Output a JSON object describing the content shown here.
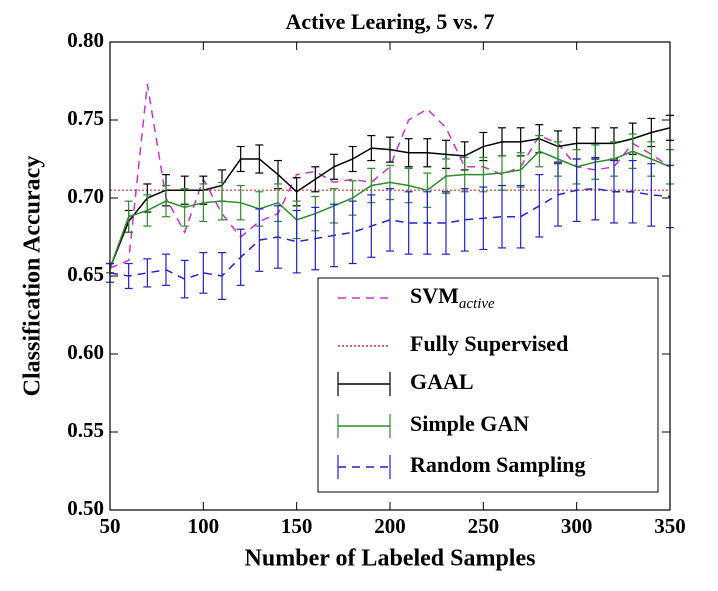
{
  "chart_data": {
    "type": "line",
    "title": "Active Learing, 5 vs. 7",
    "xlabel": "Number of Labeled Samples",
    "ylabel": "Classification Accuracy",
    "xlim": [
      50,
      350
    ],
    "ylim": [
      0.5,
      0.8
    ],
    "xticks": [
      50,
      100,
      150,
      200,
      250,
      300,
      350
    ],
    "yticks": [
      {
        "value": 0.5,
        "label": "0.50"
      },
      {
        "value": 0.55,
        "label": "0.55"
      },
      {
        "value": 0.6,
        "label": "0.60"
      },
      {
        "value": 0.65,
        "label": "0.65"
      },
      {
        "value": 0.7,
        "label": "0.70"
      },
      {
        "value": 0.75,
        "label": "0.75"
      },
      {
        "value": 0.8,
        "label": "0.80"
      }
    ],
    "legend": "lower right",
    "x": [
      50,
      60,
      70,
      80,
      90,
      100,
      110,
      120,
      130,
      140,
      150,
      160,
      170,
      180,
      190,
      200,
      210,
      220,
      230,
      240,
      250,
      260,
      270,
      280,
      290,
      300,
      310,
      320,
      330,
      340,
      350
    ],
    "series": [
      {
        "name": "SVM",
        "name_subscript": "active",
        "color": "#cc33cc",
        "linestyle": "dashed",
        "values": [
          0.655,
          0.66,
          0.773,
          0.7,
          0.678,
          0.712,
          0.69,
          0.675,
          0.685,
          0.69,
          0.715,
          0.717,
          0.71,
          0.712,
          0.71,
          0.72,
          0.75,
          0.757,
          0.745,
          0.72,
          0.72,
          0.715,
          0.72,
          0.74,
          0.735,
          0.72,
          0.718,
          0.72,
          0.735,
          0.728,
          0.72
        ]
      },
      {
        "name": "Fully Supervised",
        "color": "#cc3333",
        "linestyle": "dotted",
        "y": 0.705
      },
      {
        "name": "GAAL",
        "color": "#000000",
        "linestyle": "solid",
        "values": [
          0.655,
          0.685,
          0.7,
          0.705,
          0.705,
          0.705,
          0.708,
          0.725,
          0.725,
          0.715,
          0.704,
          0.712,
          0.72,
          0.725,
          0.732,
          0.731,
          0.729,
          0.729,
          0.728,
          0.727,
          0.733,
          0.736,
          0.736,
          0.738,
          0.733,
          0.735,
          0.735,
          0.735,
          0.738,
          0.742,
          0.745
        ],
        "errors": [
          0.003,
          0.007,
          0.009,
          0.01,
          0.009,
          0.009,
          0.01,
          0.008,
          0.009,
          0.009,
          0.009,
          0.008,
          0.008,
          0.008,
          0.008,
          0.008,
          0.009,
          0.009,
          0.009,
          0.009,
          0.009,
          0.009,
          0.009,
          0.009,
          0.01,
          0.01,
          0.01,
          0.01,
          0.01,
          0.009,
          0.008
        ]
      },
      {
        "name": "Simple GAN",
        "color": "#2e8b2e",
        "linestyle": "solid",
        "values": [
          0.655,
          0.688,
          0.692,
          0.698,
          0.694,
          0.697,
          0.698,
          0.697,
          0.693,
          0.697,
          0.686,
          0.69,
          0.695,
          0.7,
          0.708,
          0.71,
          0.708,
          0.705,
          0.714,
          0.715,
          0.715,
          0.716,
          0.718,
          0.73,
          0.725,
          0.72,
          0.723,
          0.725,
          0.73,
          0.725,
          0.72
        ],
        "errors": [
          0.003,
          0.01,
          0.01,
          0.01,
          0.012,
          0.012,
          0.012,
          0.011,
          0.011,
          0.012,
          0.012,
          0.011,
          0.011,
          0.011,
          0.011,
          0.011,
          0.011,
          0.011,
          0.011,
          0.011,
          0.011,
          0.011,
          0.011,
          0.01,
          0.011,
          0.011,
          0.011,
          0.011,
          0.011,
          0.011,
          0.011
        ]
      },
      {
        "name": "Random Sampling",
        "color": "#2222cc",
        "linestyle": "dashed",
        "values": [
          0.652,
          0.65,
          0.652,
          0.654,
          0.648,
          0.652,
          0.65,
          0.662,
          0.673,
          0.675,
          0.672,
          0.674,
          0.676,
          0.678,
          0.682,
          0.686,
          0.684,
          0.684,
          0.684,
          0.686,
          0.687,
          0.688,
          0.688,
          0.695,
          0.702,
          0.705,
          0.706,
          0.704,
          0.704,
          0.702,
          0.701
        ],
        "errors": [
          0.006,
          0.008,
          0.009,
          0.01,
          0.012,
          0.013,
          0.015,
          0.018,
          0.02,
          0.02,
          0.02,
          0.02,
          0.02,
          0.02,
          0.02,
          0.02,
          0.02,
          0.02,
          0.02,
          0.02,
          0.02,
          0.02,
          0.02,
          0.02,
          0.02,
          0.02,
          0.02,
          0.02,
          0.02,
          0.02,
          0.02
        ]
      }
    ]
  }
}
